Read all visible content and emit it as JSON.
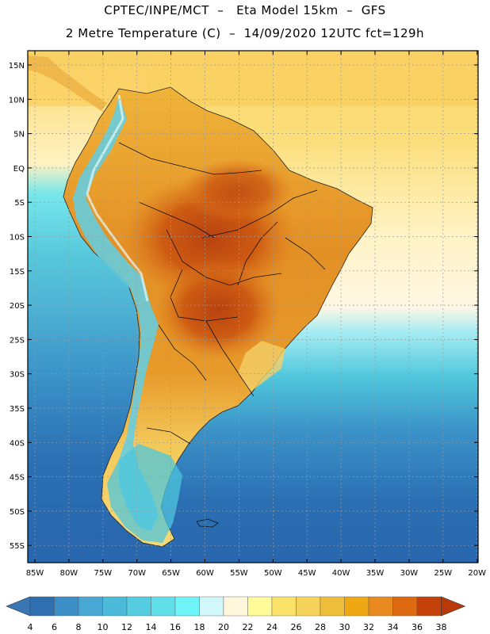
{
  "header": {
    "line1": "CPTEC/INPE/MCT  –   Eta Model 15km  –  GFS",
    "line2": "2 Metre Temperature (C)  –  14/09/2020 12UTC fct=129h"
  },
  "map": {
    "lat_labels": [
      "15N",
      "10N",
      "5N",
      "EQ",
      "5S",
      "10S",
      "15S",
      "20S",
      "25S",
      "30S",
      "35S",
      "40S",
      "45S",
      "50S",
      "55S"
    ],
    "lon_labels": [
      "85W",
      "80W",
      "75W",
      "70W",
      "65W",
      "60W",
      "55W",
      "50W",
      "45W",
      "40W",
      "35W",
      "30W",
      "25W",
      "20W"
    ],
    "colors": {
      "ocean_cold": "#2a6cb3",
      "ocean_mid": "#4ec9dd",
      "ocean_warm": "#fff3c6",
      "land_hot": "#c85610",
      "land_warm": "#e8a02c",
      "land_mild": "#f6cc50",
      "andes": "#5fcfe8"
    }
  },
  "colorbar": {
    "labels": [
      "4",
      "6",
      "8",
      "10",
      "12",
      "14",
      "16",
      "18",
      "20",
      "22",
      "24",
      "26",
      "28",
      "30",
      "32",
      "34",
      "36",
      "38"
    ],
    "colors": [
      "#3a76b4",
      "#2f6fb0",
      "#3b8ec6",
      "#49a8d3",
      "#4cbad9",
      "#55ccdf",
      "#60dfe8",
      "#6ff4f8",
      "#d2f7fb",
      "#fff6dc",
      "#fffb98",
      "#fbe36a",
      "#f5d35a",
      "#ecbe3a",
      "#eea814",
      "#e98a20",
      "#dd6a10",
      "#c4420a",
      "#b93a08"
    ]
  }
}
